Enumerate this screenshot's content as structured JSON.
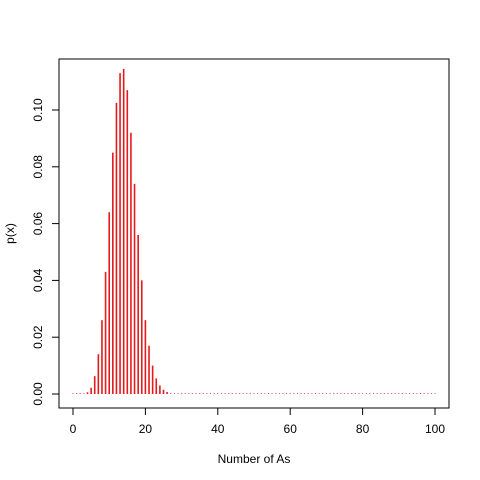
{
  "chart_data": {
    "type": "bar",
    "title": "",
    "xlabel": "Number of As",
    "ylabel": "p(x)",
    "xlim": [
      0,
      100
    ],
    "ylim": [
      0,
      0.115
    ],
    "xticks": [
      "0",
      "20",
      "40",
      "60",
      "80",
      "100"
    ],
    "yticks": [
      "0.00",
      "0.02",
      "0.04",
      "0.06",
      "0.08",
      "0.10"
    ],
    "grid": false,
    "colors": {
      "bars": "#e41a1c",
      "axes": "#000000"
    },
    "x": [
      0,
      1,
      2,
      3,
      4,
      5,
      6,
      7,
      8,
      9,
      10,
      11,
      12,
      13,
      14,
      15,
      16,
      17,
      18,
      19,
      20,
      21,
      22,
      23,
      24,
      25,
      26,
      27,
      28,
      29,
      30,
      31,
      32,
      33,
      34,
      35,
      36,
      37,
      38,
      39,
      40,
      41,
      42,
      43,
      44,
      45,
      46,
      47,
      48,
      49,
      50,
      51,
      52,
      53,
      54,
      55,
      56,
      57,
      58,
      59,
      60,
      61,
      62,
      63,
      64,
      65,
      66,
      67,
      68,
      69,
      70,
      71,
      72,
      73,
      74,
      75,
      76,
      77,
      78,
      79,
      80,
      81,
      82,
      83,
      84,
      85,
      86,
      87,
      88,
      89,
      90,
      91,
      92,
      93,
      94,
      95,
      96,
      97,
      98,
      99,
      100
    ],
    "values": [
      0,
      0,
      0,
      0.0002,
      0.0006,
      0.0022,
      0.0063,
      0.014,
      0.026,
      0.043,
      0.064,
      0.085,
      0.1025,
      0.113,
      0.1145,
      0.107,
      0.092,
      0.074,
      0.056,
      0.04,
      0.026,
      0.017,
      0.01,
      0.0055,
      0.003,
      0.0015,
      0.0007,
      0.0003,
      0.0001,
      5e-05,
      0,
      0,
      0,
      0,
      0,
      0,
      0,
      0,
      0,
      0,
      0,
      0,
      0,
      0,
      0,
      0,
      0,
      0,
      0,
      0,
      0,
      0,
      0,
      0,
      0,
      0,
      0,
      0,
      0,
      0,
      0,
      0,
      0,
      0,
      0,
      0,
      0,
      0,
      0,
      0,
      0,
      0,
      0,
      0,
      0,
      0,
      0,
      0,
      0,
      0,
      0,
      0,
      0,
      0,
      0,
      0,
      0,
      0,
      0,
      0,
      0,
      0,
      0,
      0,
      0,
      0,
      0,
      0,
      0,
      0,
      0
    ]
  }
}
